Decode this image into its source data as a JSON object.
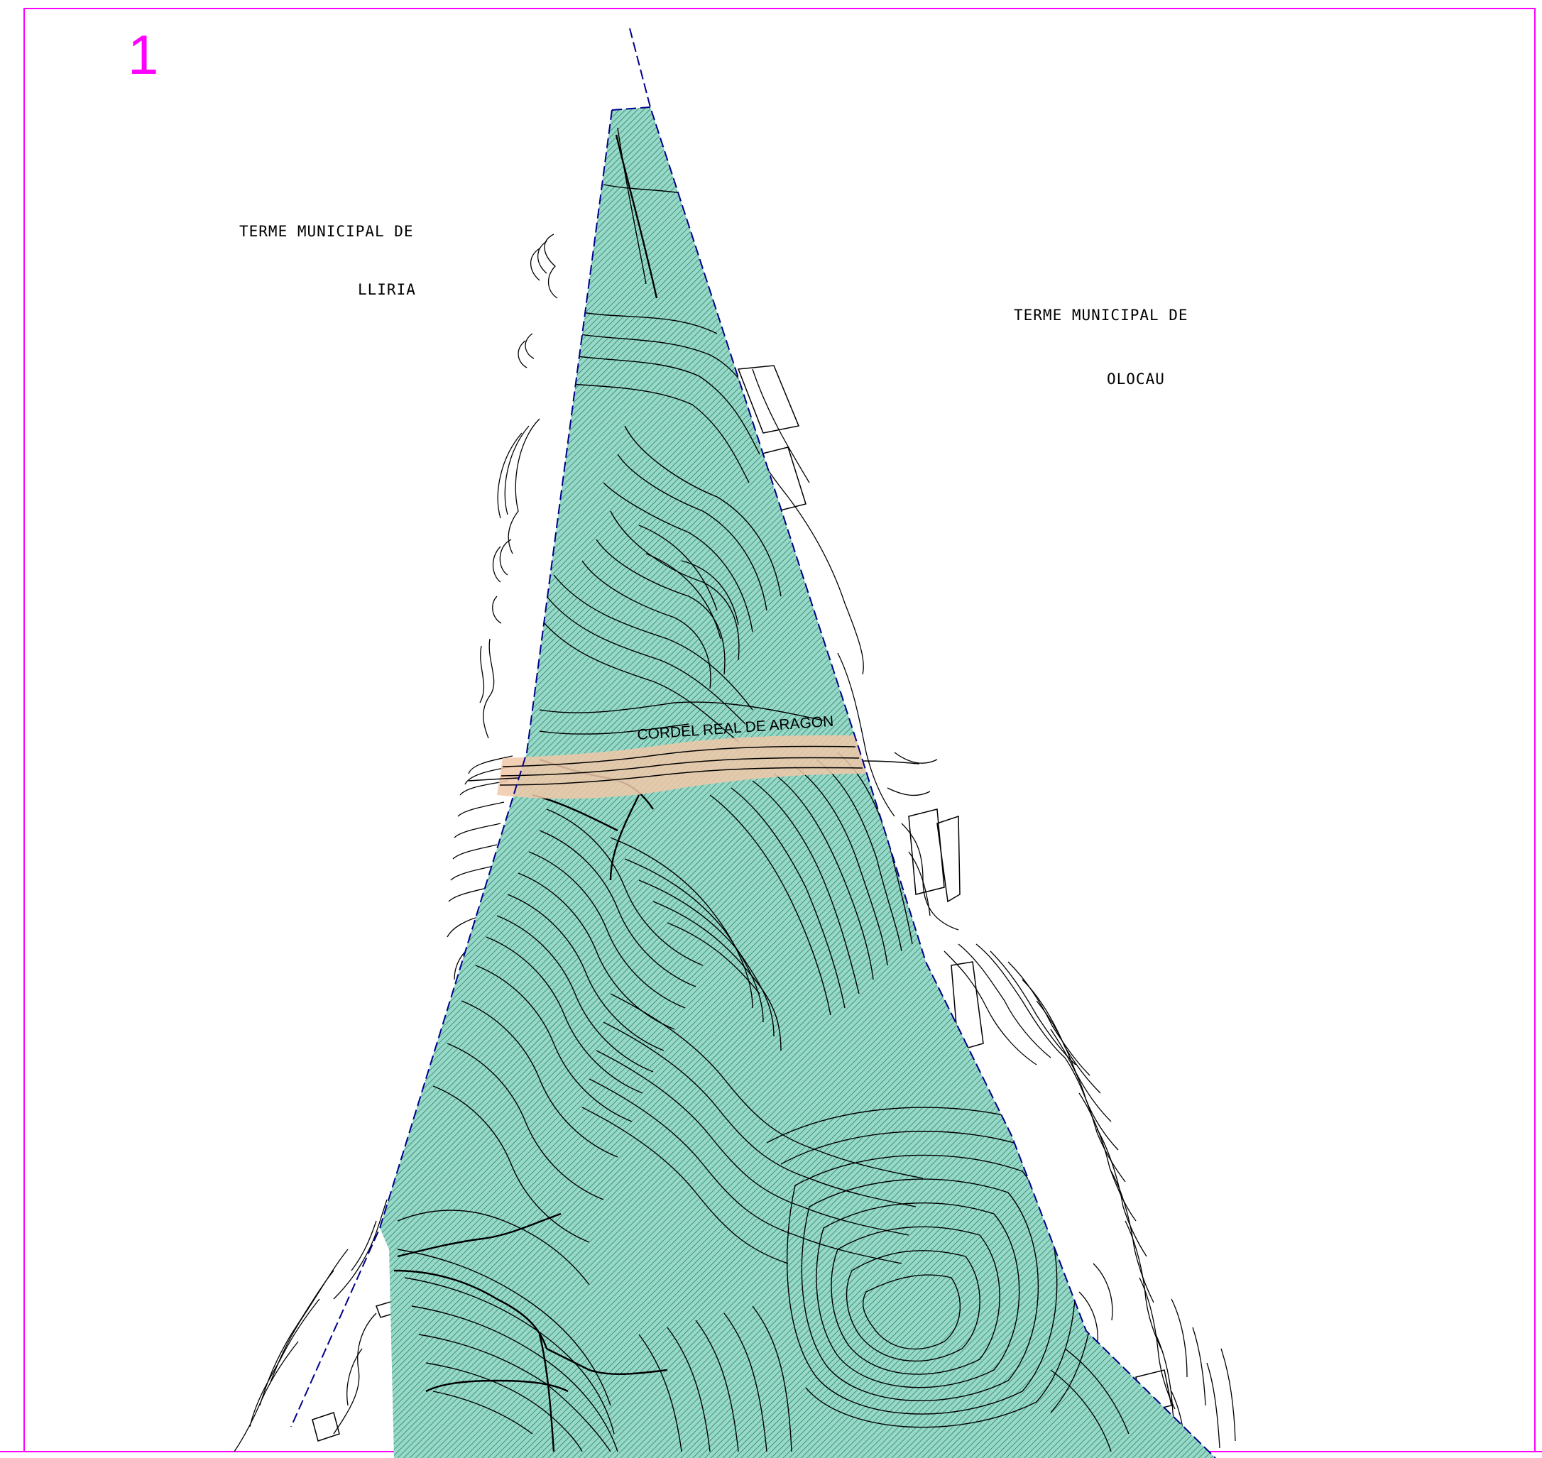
{
  "sheet": {
    "number": "1",
    "number_color": "#ff00ff",
    "frame_color": "#ff00ff"
  },
  "municipalities": {
    "left": {
      "line1": "TERME MUNICIPAL DE",
      "line2": "LLIRIA"
    },
    "right": {
      "line1": "TERME MUNICIPAL DE",
      "line2": "OLOCAU"
    }
  },
  "route": {
    "label": "CORDEL REAL DE ARAGON",
    "color": "#f0c8a8"
  },
  "area": {
    "fill_color": "#98d8c8",
    "hatch_color": "#1a7a5a",
    "boundary_color": "#00008b"
  },
  "contour_color": "#000000"
}
